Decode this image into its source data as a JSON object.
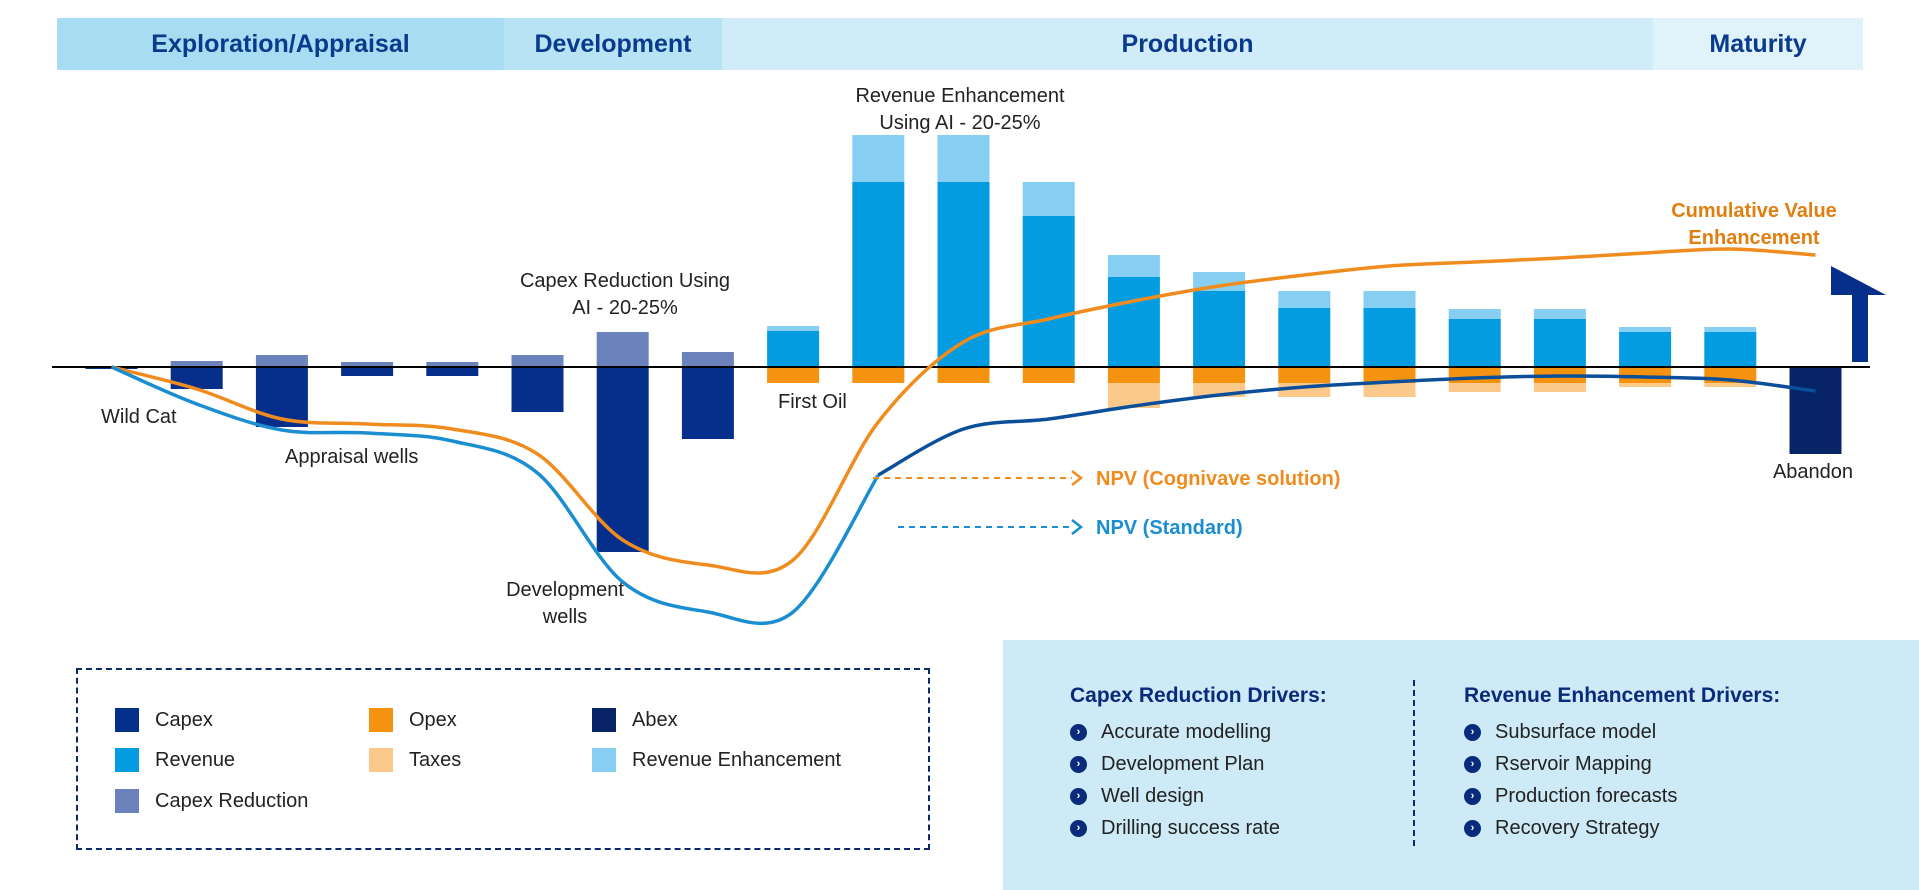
{
  "phases": [
    {
      "label": "Exploration/Appraisal",
      "color": "#a8dcf2",
      "share": 447
    },
    {
      "label": "Development",
      "color": "#b7e3f5",
      "share": 218
    },
    {
      "label": "Production",
      "color": "#d0ecf8",
      "share": 931
    },
    {
      "label": "Maturity",
      "color": "#e0f3fb",
      "share": 210
    }
  ],
  "annotations": {
    "wild_cat": "Wild Cat",
    "appraisal_wells": "Appraisal wells",
    "development_wells_1": "Development",
    "development_wells_2": "wells",
    "capex_reduction_1": "Capex Reduction Using",
    "capex_reduction_2": "AI - 20-25%",
    "first_oil": "First Oil",
    "revenue_enhancement_1": "Revenue Enhancement",
    "revenue_enhancement_2": "Using AI - 20-25%",
    "cumulative_value_1": "Cumulative Value",
    "cumulative_value_2": "Enhancement",
    "abandon": "Abandon",
    "npv_cognivave": "NPV (Cognivave solution)",
    "npv_standard": "NPV (Standard)"
  },
  "colors": {
    "capex": "#062f8c",
    "capex_reduction": "#6b82bd",
    "revenue": "#049ce0",
    "revenue_enhancement": "#86cff2",
    "opex": "#f5920f",
    "taxes": "#fbc98a",
    "abex": "#062466",
    "npv_cognivave": "#f08c1e",
    "npv_standard": "#1a8ed0",
    "npv_standard_tail": "#0b4f9a",
    "arrow": "#062f8c"
  },
  "chart_data": {
    "type": "bar",
    "value_unit": "relative",
    "periods": [
      {
        "capex": 0.2,
        "capex_reduction": 0
      },
      {
        "capex": 2.2,
        "capex_reduction": 0.6
      },
      {
        "capex": 6.0,
        "capex_reduction": 1.2
      },
      {
        "capex": 0.9,
        "capex_reduction": 0.5
      },
      {
        "capex": 0.9,
        "capex_reduction": 0.5
      },
      {
        "capex": 4.5,
        "capex_reduction": 1.2
      },
      {
        "capex": 18.5,
        "capex_reduction": 3.5
      },
      {
        "capex": 7.2,
        "capex_reduction": 1.5
      },
      {
        "revenue": 3.6,
        "revenue_enhancement": 0.5,
        "opex": 1.6,
        "taxes": 0
      },
      {
        "revenue": 18.5,
        "revenue_enhancement": 4.7,
        "opex": 1.6,
        "taxes": 0
      },
      {
        "revenue": 18.5,
        "revenue_enhancement": 4.7,
        "opex": 1.6,
        "taxes": 0
      },
      {
        "revenue": 15.1,
        "revenue_enhancement": 3.4,
        "opex": 1.6,
        "taxes": 0
      },
      {
        "revenue": 9.0,
        "revenue_enhancement": 2.2,
        "opex": 1.6,
        "taxes": 2.5
      },
      {
        "revenue": 7.6,
        "revenue_enhancement": 1.9,
        "opex": 1.6,
        "taxes": 1.4
      },
      {
        "revenue": 5.9,
        "revenue_enhancement": 1.7,
        "opex": 1.6,
        "taxes": 1.4
      },
      {
        "revenue": 5.9,
        "revenue_enhancement": 1.7,
        "opex": 1.6,
        "taxes": 1.4
      },
      {
        "revenue": 4.8,
        "revenue_enhancement": 1.0,
        "opex": 1.6,
        "taxes": 0.9
      },
      {
        "revenue": 4.8,
        "revenue_enhancement": 1.0,
        "opex": 1.6,
        "taxes": 0.9
      },
      {
        "revenue": 3.5,
        "revenue_enhancement": 0.5,
        "opex": 1.6,
        "taxes": 0.4
      },
      {
        "revenue": 3.5,
        "revenue_enhancement": 0.5,
        "opex": 1.6,
        "taxes": 0.4
      },
      {
        "abex": 8.7
      }
    ],
    "series": [
      {
        "name": "NPV (Cognivave solution)",
        "key": "npv_cognivave",
        "values": [
          0,
          -2.2,
          -5.2,
          -5.7,
          -6.2,
          -8.7,
          -17.3,
          -19.8,
          -19.3,
          -5.5,
          2.5,
          4.8,
          6.6,
          8.1,
          9.2,
          10.1,
          10.5,
          10.9,
          11.4,
          11.8,
          11.2
        ]
      },
      {
        "name": "NPV (Standard)",
        "key": "npv_standard",
        "values": [
          0,
          -3.7,
          -6.3,
          -6.6,
          -7.4,
          -10.6,
          -21.5,
          -24.5,
          -24.5,
          -10.8,
          -6.2,
          -5.2,
          -3.9,
          -2.8,
          -2.0,
          -1.5,
          -1.1,
          -0.9,
          -1.0,
          -1.3,
          -2.4
        ]
      }
    ]
  },
  "legend": [
    {
      "label": "Capex",
      "color_key": "capex"
    },
    {
      "label": "Opex",
      "color_key": "opex"
    },
    {
      "label": "Abex",
      "color_key": "abex"
    },
    {
      "label": "Revenue",
      "color_key": "revenue"
    },
    {
      "label": "Taxes",
      "color_key": "taxes"
    },
    {
      "label": "Revenue Enhancement",
      "color_key": "revenue_enhancement"
    },
    {
      "label": "Capex Reduction",
      "color_key": "capex_reduction"
    }
  ],
  "drivers": {
    "capex": {
      "title": "Capex Reduction Drivers:",
      "items": [
        "Accurate modelling",
        "Development Plan",
        "Well design",
        "Drilling success rate"
      ]
    },
    "revenue": {
      "title": "Revenue Enhancement Drivers:",
      "items": [
        "Subsurface model",
        "Rservoir Mapping",
        "Production forecasts",
        "Recovery Strategy"
      ]
    }
  }
}
